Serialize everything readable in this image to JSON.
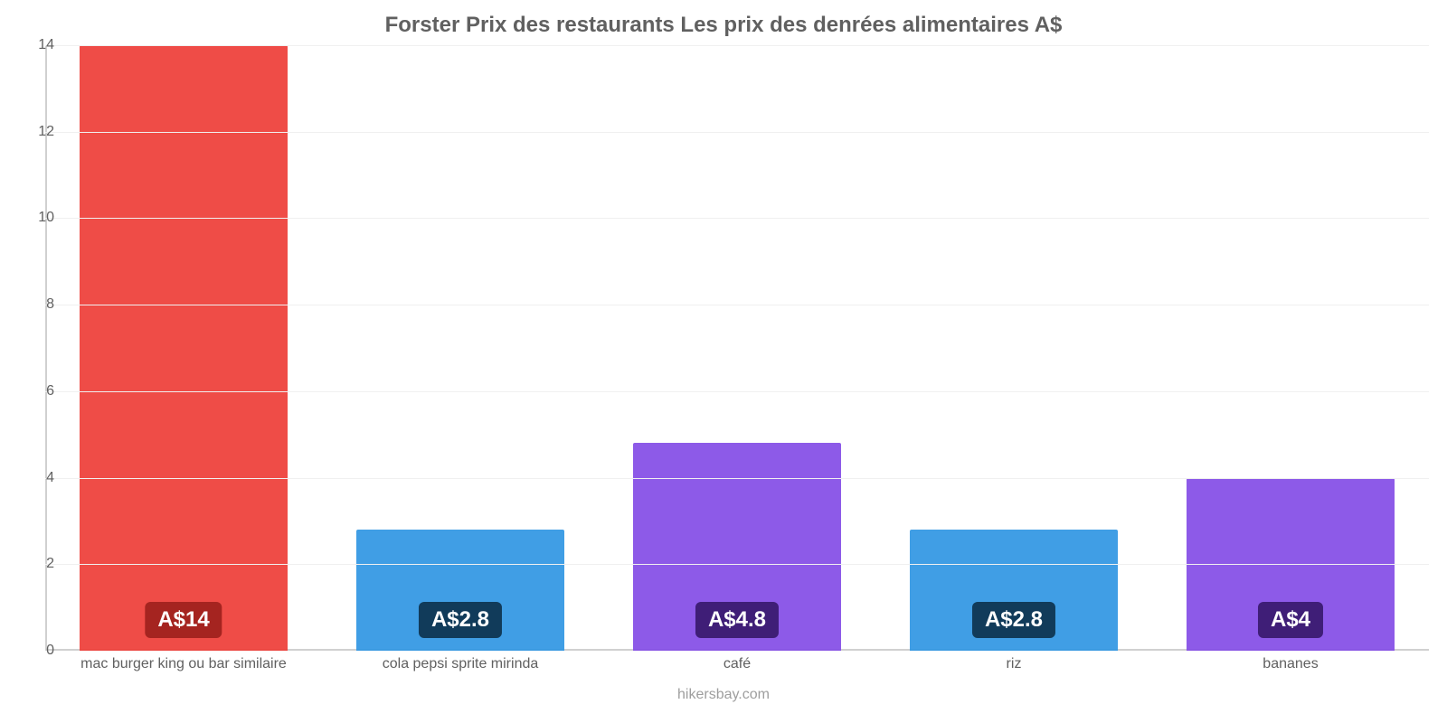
{
  "chart": {
    "type": "bar",
    "title": "Forster Prix des restaurants Les prix des denrées alimentaires A$",
    "title_fontsize": 24,
    "title_color": "#606060",
    "footer": "hikersbay.com",
    "footer_fontsize": 16,
    "footer_color": "#9e9e9e",
    "background_color": "#ffffff",
    "grid_color": "#f0f0f0",
    "axis_line_color": "#d0d0d0",
    "ytick_label_color": "#606060",
    "ytick_fontsize": 16,
    "xtick_label_color": "#606060",
    "xtick_fontsize": 16,
    "ylim_min": 0,
    "ylim_max": 14,
    "ytick_step": 2,
    "yticks": [
      0,
      2,
      4,
      6,
      8,
      10,
      12,
      14
    ],
    "bar_width_ratio": 0.75,
    "bar_top_radius": 2,
    "bar_opacity": 0.9,
    "value_prefix": "A$",
    "label_fontsize": 24,
    "categories": [
      {
        "label": "mac burger king ou bar similaire",
        "value": 14,
        "display": "A$14",
        "bar_color": "#ed3833",
        "badge_bg": "#a52420"
      },
      {
        "label": "cola pepsi sprite mirinda",
        "value": 2.8,
        "display": "A$2.8",
        "bar_color": "#2b94e2",
        "badge_bg": "#113b5a"
      },
      {
        "label": "café",
        "value": 4.8,
        "display": "A$4.8",
        "bar_color": "#8148e6",
        "badge_bg": "#3f1e77"
      },
      {
        "label": "riz",
        "value": 2.8,
        "display": "A$2.8",
        "bar_color": "#2b94e2",
        "badge_bg": "#113b5a"
      },
      {
        "label": "bananes",
        "value": 4.0,
        "display": "A$4",
        "bar_color": "#8148e6",
        "badge_bg": "#3f1e77"
      }
    ]
  }
}
